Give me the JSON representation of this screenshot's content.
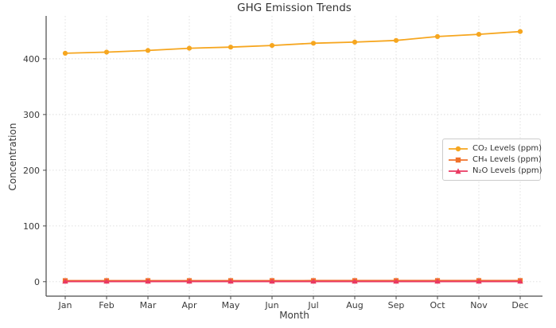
{
  "chart_data": {
    "type": "line",
    "title": "GHG Emission Trends",
    "xlabel": "Month",
    "ylabel": "Concentration",
    "categories": [
      "Jan",
      "Feb",
      "Mar",
      "Apr",
      "May",
      "Jun",
      "Jul",
      "Aug",
      "Sep",
      "Oct",
      "Nov",
      "Dec"
    ],
    "series": [
      {
        "name": "CO₂ Levels (ppm)",
        "color": "#F6A61F",
        "marker": "circle",
        "values": [
          410,
          412,
          415,
          419,
          421,
          424,
          428,
          430,
          433,
          440,
          444,
          449
        ]
      },
      {
        "name": "CH₄ Levels (ppm)",
        "color": "#F0722B",
        "marker": "square",
        "values": [
          1.86,
          1.87,
          1.88,
          1.89,
          1.9,
          1.91,
          1.92,
          1.93,
          1.94,
          1.95,
          1.96,
          1.97
        ]
      },
      {
        "name": "N₂O Levels (ppm)",
        "color": "#EA3A62",
        "marker": "triangle",
        "values": [
          0.33,
          0.331,
          0.332,
          0.333,
          0.334,
          0.335,
          0.336,
          0.337,
          0.338,
          0.339,
          0.34,
          0.341
        ]
      }
    ],
    "yticks": [
      0,
      100,
      200,
      300,
      400
    ],
    "ylim": [
      -26,
      477
    ],
    "grid": true,
    "grid_style": "dotted",
    "legend_position": "center-right",
    "colors": {
      "grid": "#dcdcdc",
      "axis": "#4a4a4a",
      "tick_text": "#3a3a3a",
      "title_text": "#333333",
      "background": "#ffffff"
    }
  }
}
